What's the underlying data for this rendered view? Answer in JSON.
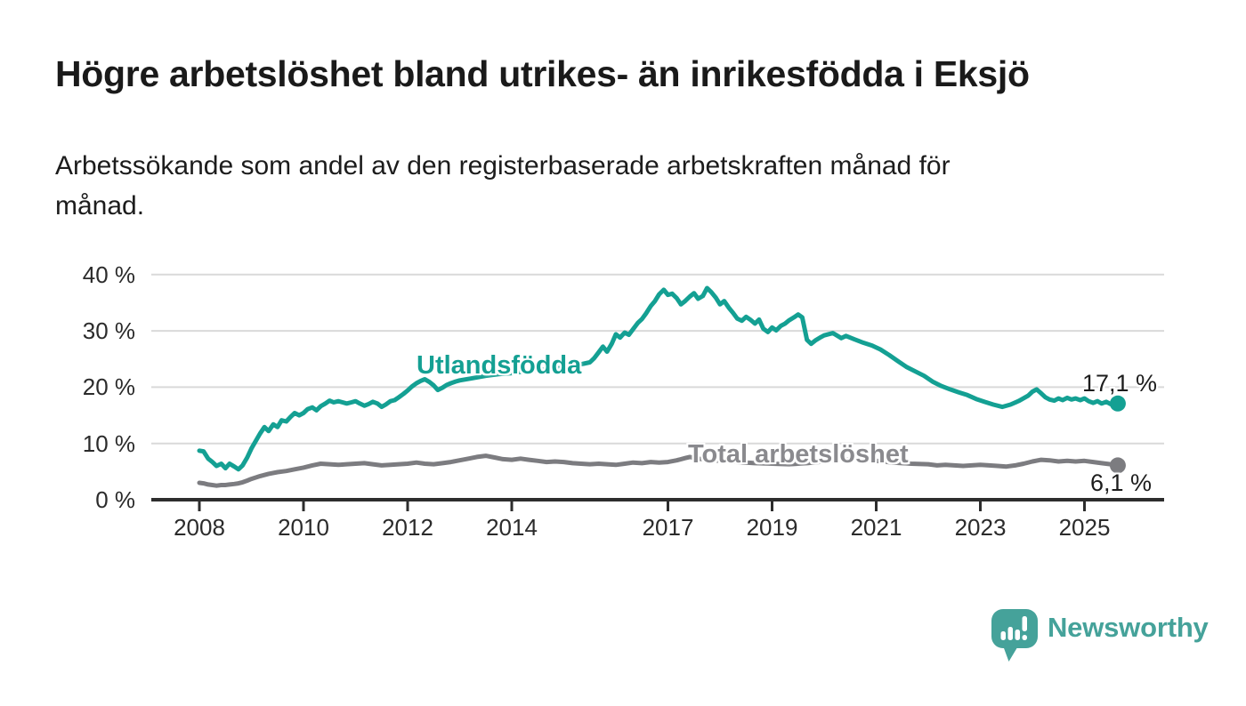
{
  "header": {
    "title": "Högre arbetslöshet bland utrikes- än inrikesfödda i Eksjö",
    "subtitle": "Arbetssökande som andel av den registerbaserade arbetskraften månad för\nmånad."
  },
  "chart_data": {
    "type": "line",
    "title": "",
    "xlabel": "",
    "ylabel": "",
    "unit": "%",
    "grid": true,
    "legend_position": "inline-labels-on-lines",
    "x_axis": {
      "tick_years": [
        2008,
        2010,
        2012,
        2014,
        2017,
        2019,
        2021,
        2023,
        2025
      ],
      "tick_labels": [
        "2008",
        "2010",
        "2012",
        "2014",
        "2017",
        "2019",
        "2021",
        "2023",
        "2025"
      ],
      "range_years": [
        2007.1,
        2026.5
      ]
    },
    "y_axis": {
      "ticks": [
        0,
        10,
        20,
        30,
        40
      ],
      "tick_labels": [
        "0 %",
        "10 %",
        "20 %",
        "30 %",
        "40 %"
      ],
      "range": [
        0,
        42
      ]
    },
    "colors": {
      "grid": "#d9d9d9",
      "axis": "#2d2d2d",
      "tick_text": "#2b2b2b",
      "value_label_text": "#1d1d1d"
    },
    "series": [
      {
        "name": "Utlandsfödda",
        "color": "#14a093",
        "label_color": "#14a093",
        "end_label": "17,1 %",
        "last_value": 17.1,
        "points": [
          [
            2008.0,
            8.7
          ],
          [
            2008.08,
            8.6
          ],
          [
            2008.17,
            7.3
          ],
          [
            2008.25,
            6.7
          ],
          [
            2008.33,
            6.0
          ],
          [
            2008.42,
            6.4
          ],
          [
            2008.5,
            5.6
          ],
          [
            2008.58,
            6.4
          ],
          [
            2008.67,
            5.9
          ],
          [
            2008.75,
            5.4
          ],
          [
            2008.83,
            6.1
          ],
          [
            2008.92,
            7.5
          ],
          [
            2009.0,
            9.1
          ],
          [
            2009.08,
            10.4
          ],
          [
            2009.17,
            11.8
          ],
          [
            2009.25,
            12.9
          ],
          [
            2009.33,
            12.2
          ],
          [
            2009.42,
            13.4
          ],
          [
            2009.5,
            12.9
          ],
          [
            2009.58,
            14.1
          ],
          [
            2009.67,
            13.9
          ],
          [
            2009.75,
            14.7
          ],
          [
            2009.83,
            15.4
          ],
          [
            2009.92,
            15.0
          ],
          [
            2010.0,
            15.4
          ],
          [
            2010.08,
            16.1
          ],
          [
            2010.17,
            16.4
          ],
          [
            2010.25,
            15.9
          ],
          [
            2010.33,
            16.6
          ],
          [
            2010.42,
            17.1
          ],
          [
            2010.5,
            17.6
          ],
          [
            2010.58,
            17.3
          ],
          [
            2010.67,
            17.5
          ],
          [
            2010.75,
            17.3
          ],
          [
            2010.83,
            17.1
          ],
          [
            2010.92,
            17.3
          ],
          [
            2011.0,
            17.5
          ],
          [
            2011.08,
            17.1
          ],
          [
            2011.17,
            16.7
          ],
          [
            2011.25,
            17.0
          ],
          [
            2011.33,
            17.4
          ],
          [
            2011.42,
            17.1
          ],
          [
            2011.5,
            16.5
          ],
          [
            2011.58,
            16.9
          ],
          [
            2011.67,
            17.5
          ],
          [
            2011.75,
            17.7
          ],
          [
            2011.83,
            18.2
          ],
          [
            2011.92,
            18.8
          ],
          [
            2012.0,
            19.4
          ],
          [
            2012.08,
            20.1
          ],
          [
            2012.17,
            20.7
          ],
          [
            2012.25,
            21.1
          ],
          [
            2012.33,
            21.4
          ],
          [
            2012.42,
            20.9
          ],
          [
            2012.5,
            20.3
          ],
          [
            2012.58,
            19.5
          ],
          [
            2012.67,
            19.9
          ],
          [
            2012.75,
            20.4
          ],
          [
            2012.83,
            20.7
          ],
          [
            2012.92,
            21.0
          ],
          [
            2013.0,
            21.2
          ],
          [
            2013.25,
            21.6
          ],
          [
            2013.5,
            22.0
          ],
          [
            2013.75,
            22.3
          ],
          [
            2014.0,
            22.5
          ],
          [
            2014.25,
            22.8
          ],
          [
            2014.5,
            23.0
          ],
          [
            2014.75,
            23.2
          ],
          [
            2015.0,
            23.5
          ],
          [
            2015.25,
            23.9
          ],
          [
            2015.5,
            24.4
          ],
          [
            2015.58,
            25.1
          ],
          [
            2015.67,
            26.2
          ],
          [
            2015.75,
            27.2
          ],
          [
            2015.83,
            26.3
          ],
          [
            2015.92,
            27.7
          ],
          [
            2016.0,
            29.4
          ],
          [
            2016.08,
            28.8
          ],
          [
            2016.17,
            29.7
          ],
          [
            2016.25,
            29.3
          ],
          [
            2016.33,
            30.3
          ],
          [
            2016.42,
            31.4
          ],
          [
            2016.5,
            32.1
          ],
          [
            2016.58,
            33.1
          ],
          [
            2016.67,
            34.4
          ],
          [
            2016.75,
            35.3
          ],
          [
            2016.83,
            36.5
          ],
          [
            2016.92,
            37.3
          ],
          [
            2017.0,
            36.4
          ],
          [
            2017.08,
            36.6
          ],
          [
            2017.17,
            35.8
          ],
          [
            2017.25,
            34.7
          ],
          [
            2017.33,
            35.3
          ],
          [
            2017.42,
            36.1
          ],
          [
            2017.5,
            36.7
          ],
          [
            2017.58,
            35.7
          ],
          [
            2017.67,
            36.2
          ],
          [
            2017.75,
            37.6
          ],
          [
            2017.83,
            36.9
          ],
          [
            2017.92,
            35.9
          ],
          [
            2018.0,
            34.7
          ],
          [
            2018.08,
            35.3
          ],
          [
            2018.17,
            34.1
          ],
          [
            2018.25,
            33.2
          ],
          [
            2018.33,
            32.2
          ],
          [
            2018.42,
            31.8
          ],
          [
            2018.5,
            32.5
          ],
          [
            2018.58,
            32.0
          ],
          [
            2018.67,
            31.3
          ],
          [
            2018.75,
            32.0
          ],
          [
            2018.83,
            30.4
          ],
          [
            2018.92,
            29.8
          ],
          [
            2019.0,
            30.6
          ],
          [
            2019.08,
            30.1
          ],
          [
            2019.17,
            30.9
          ],
          [
            2019.25,
            31.3
          ],
          [
            2019.33,
            31.9
          ],
          [
            2019.42,
            32.4
          ],
          [
            2019.5,
            32.9
          ],
          [
            2019.58,
            32.4
          ],
          [
            2019.67,
            28.4
          ],
          [
            2019.75,
            27.7
          ],
          [
            2019.83,
            28.3
          ],
          [
            2019.92,
            28.8
          ],
          [
            2020.0,
            29.2
          ],
          [
            2020.17,
            29.6
          ],
          [
            2020.33,
            28.7
          ],
          [
            2020.42,
            29.1
          ],
          [
            2020.58,
            28.5
          ],
          [
            2020.75,
            27.9
          ],
          [
            2020.92,
            27.4
          ],
          [
            2021.08,
            26.7
          ],
          [
            2021.25,
            25.7
          ],
          [
            2021.42,
            24.6
          ],
          [
            2021.58,
            23.6
          ],
          [
            2021.75,
            22.8
          ],
          [
            2021.92,
            22.0
          ],
          [
            2022.08,
            21.0
          ],
          [
            2022.25,
            20.2
          ],
          [
            2022.42,
            19.6
          ],
          [
            2022.58,
            19.1
          ],
          [
            2022.75,
            18.6
          ],
          [
            2022.92,
            17.9
          ],
          [
            2023.08,
            17.4
          ],
          [
            2023.25,
            16.9
          ],
          [
            2023.42,
            16.5
          ],
          [
            2023.58,
            16.9
          ],
          [
            2023.75,
            17.6
          ],
          [
            2023.92,
            18.5
          ],
          [
            2024.0,
            19.2
          ],
          [
            2024.08,
            19.6
          ],
          [
            2024.17,
            18.9
          ],
          [
            2024.25,
            18.2
          ],
          [
            2024.33,
            17.8
          ],
          [
            2024.42,
            17.6
          ],
          [
            2024.5,
            18.0
          ],
          [
            2024.58,
            17.7
          ],
          [
            2024.67,
            18.1
          ],
          [
            2024.75,
            17.8
          ],
          [
            2024.83,
            18.0
          ],
          [
            2024.92,
            17.7
          ],
          [
            2025.0,
            18.0
          ],
          [
            2025.08,
            17.5
          ],
          [
            2025.17,
            17.2
          ],
          [
            2025.25,
            17.5
          ],
          [
            2025.33,
            17.1
          ],
          [
            2025.42,
            17.4
          ],
          [
            2025.5,
            17.0
          ],
          [
            2025.58,
            17.2
          ],
          [
            2025.64,
            17.1
          ]
        ]
      },
      {
        "name": "Total arbetslöshet",
        "color": "#7c7c80",
        "label_color": "#8a8a8e",
        "end_label": "6,1 %",
        "last_value": 6.1,
        "points": [
          [
            2008.0,
            3.0
          ],
          [
            2008.08,
            2.9
          ],
          [
            2008.17,
            2.7
          ],
          [
            2008.25,
            2.6
          ],
          [
            2008.33,
            2.5
          ],
          [
            2008.42,
            2.6
          ],
          [
            2008.5,
            2.6
          ],
          [
            2008.58,
            2.7
          ],
          [
            2008.67,
            2.8
          ],
          [
            2008.75,
            2.9
          ],
          [
            2008.83,
            3.1
          ],
          [
            2008.92,
            3.4
          ],
          [
            2009.0,
            3.7
          ],
          [
            2009.17,
            4.2
          ],
          [
            2009.33,
            4.6
          ],
          [
            2009.5,
            4.9
          ],
          [
            2009.67,
            5.1
          ],
          [
            2009.83,
            5.4
          ],
          [
            2010.0,
            5.7
          ],
          [
            2010.17,
            6.1
          ],
          [
            2010.33,
            6.4
          ],
          [
            2010.5,
            6.3
          ],
          [
            2010.67,
            6.2
          ],
          [
            2010.83,
            6.3
          ],
          [
            2011.0,
            6.4
          ],
          [
            2011.17,
            6.5
          ],
          [
            2011.33,
            6.3
          ],
          [
            2011.5,
            6.1
          ],
          [
            2011.67,
            6.2
          ],
          [
            2011.83,
            6.3
          ],
          [
            2012.0,
            6.4
          ],
          [
            2012.17,
            6.6
          ],
          [
            2012.33,
            6.4
          ],
          [
            2012.5,
            6.3
          ],
          [
            2012.67,
            6.5
          ],
          [
            2012.83,
            6.7
          ],
          [
            2013.0,
            7.0
          ],
          [
            2013.17,
            7.3
          ],
          [
            2013.33,
            7.6
          ],
          [
            2013.5,
            7.8
          ],
          [
            2013.67,
            7.5
          ],
          [
            2013.83,
            7.2
          ],
          [
            2014.0,
            7.1
          ],
          [
            2014.17,
            7.3
          ],
          [
            2014.33,
            7.1
          ],
          [
            2014.5,
            6.9
          ],
          [
            2014.67,
            6.7
          ],
          [
            2014.83,
            6.8
          ],
          [
            2015.0,
            6.7
          ],
          [
            2015.17,
            6.5
          ],
          [
            2015.33,
            6.4
          ],
          [
            2015.5,
            6.3
          ],
          [
            2015.67,
            6.4
          ],
          [
            2015.83,
            6.3
          ],
          [
            2016.0,
            6.2
          ],
          [
            2016.17,
            6.4
          ],
          [
            2016.33,
            6.6
          ],
          [
            2016.5,
            6.5
          ],
          [
            2016.67,
            6.7
          ],
          [
            2016.83,
            6.6
          ],
          [
            2017.0,
            6.7
          ],
          [
            2017.17,
            7.0
          ],
          [
            2017.33,
            7.4
          ],
          [
            2017.42,
            7.6
          ],
          [
            2017.58,
            7.3
          ],
          [
            2017.75,
            7.1
          ],
          [
            2018.0,
            6.9
          ],
          [
            2018.33,
            6.7
          ],
          [
            2018.67,
            6.5
          ],
          [
            2019.0,
            6.4
          ],
          [
            2019.33,
            6.3
          ],
          [
            2019.67,
            6.5
          ],
          [
            2020.0,
            6.8
          ],
          [
            2020.33,
            7.2
          ],
          [
            2020.67,
            7.1
          ],
          [
            2021.0,
            6.9
          ],
          [
            2021.33,
            6.6
          ],
          [
            2021.67,
            6.4
          ],
          [
            2022.0,
            6.3
          ],
          [
            2022.17,
            6.1
          ],
          [
            2022.33,
            6.2
          ],
          [
            2022.5,
            6.1
          ],
          [
            2022.67,
            6.0
          ],
          [
            2022.83,
            6.1
          ],
          [
            2023.0,
            6.2
          ],
          [
            2023.17,
            6.1
          ],
          [
            2023.33,
            6.0
          ],
          [
            2023.5,
            5.9
          ],
          [
            2023.67,
            6.1
          ],
          [
            2023.83,
            6.4
          ],
          [
            2024.0,
            6.8
          ],
          [
            2024.17,
            7.1
          ],
          [
            2024.33,
            7.0
          ],
          [
            2024.5,
            6.8
          ],
          [
            2024.67,
            6.9
          ],
          [
            2024.83,
            6.8
          ],
          [
            2025.0,
            6.9
          ],
          [
            2025.17,
            6.7
          ],
          [
            2025.33,
            6.5
          ],
          [
            2025.5,
            6.3
          ],
          [
            2025.64,
            6.1
          ]
        ]
      }
    ]
  },
  "branding": {
    "logo_text": "Newsworthy",
    "logo_color": "#45a29a",
    "logo_icon": "newsworthy-speech-bubble-bar-chart-icon"
  }
}
